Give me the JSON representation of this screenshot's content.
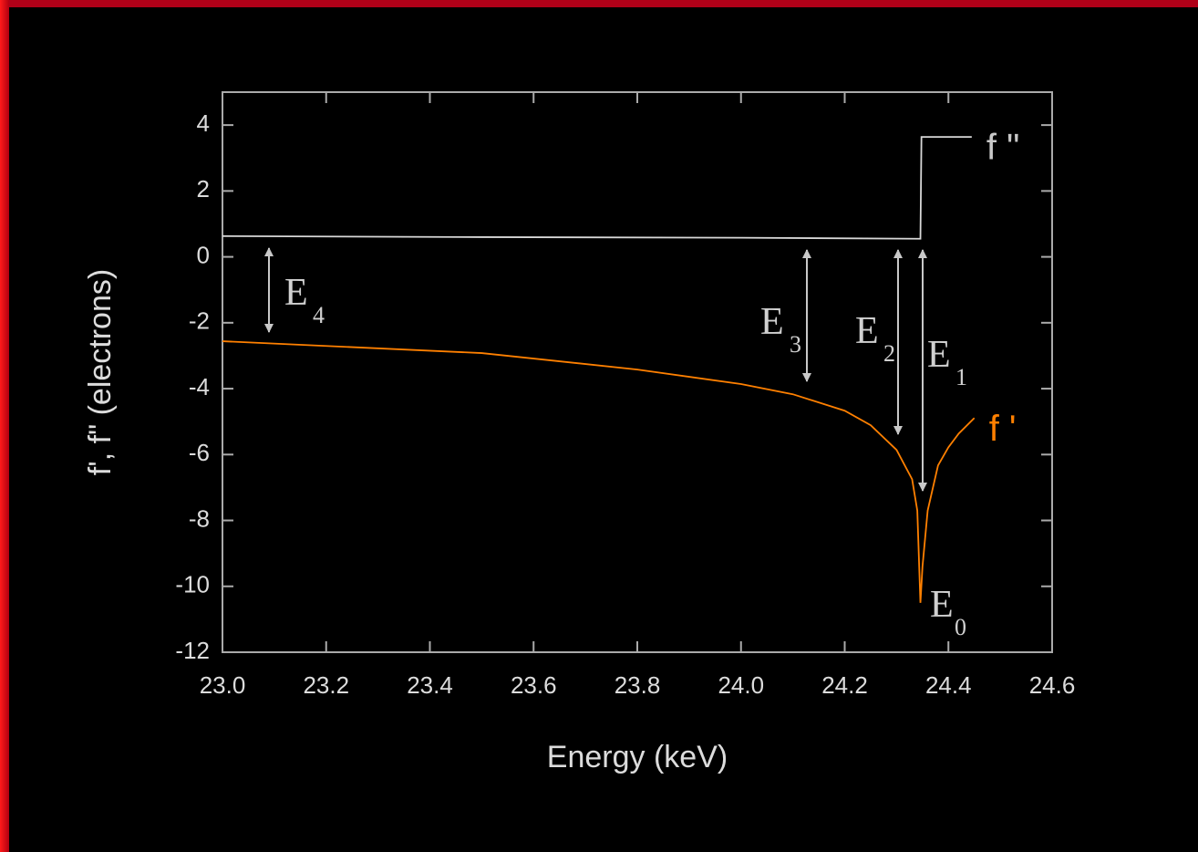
{
  "chart_data": {
    "type": "line",
    "xlabel": "Energy (keV)",
    "ylabel": "f', f\" (electrons)",
    "xlim": [
      23.0,
      24.6
    ],
    "xticks": [
      {
        "value": 23.0,
        "label": "23.0"
      },
      {
        "value": 23.2,
        "label": "23.2"
      },
      {
        "value": 23.4,
        "label": "23.4"
      },
      {
        "value": 23.6,
        "label": "23.6"
      },
      {
        "value": 23.8,
        "label": "23.8"
      },
      {
        "value": 24.0,
        "label": "24.0"
      },
      {
        "value": 24.2,
        "label": "24.2"
      },
      {
        "value": 24.4,
        "label": "24.4"
      },
      {
        "value": 24.6,
        "label": "24.6"
      }
    ],
    "ylim": [
      -12,
      5
    ],
    "yticks": [
      4,
      2,
      0,
      -2,
      -4,
      -6,
      -8,
      -10,
      -12
    ],
    "series": [
      {
        "name": "f \"",
        "color": "#d8d8d8",
        "label_color": "#c8c8c8",
        "x": [
          23.0,
          23.5,
          24.0,
          24.346,
          24.348,
          24.445
        ],
        "values": [
          0.63,
          0.6,
          0.58,
          0.55,
          3.64,
          3.64
        ]
      },
      {
        "name": "f '",
        "color": "#ff8000",
        "label_color": "#ff8000",
        "x": [
          23.0,
          23.5,
          23.8,
          24.0,
          24.1,
          24.2,
          24.25,
          24.3,
          24.33,
          24.34,
          24.346,
          24.35,
          24.36,
          24.38,
          24.4,
          24.42,
          24.45
        ],
        "values": [
          -2.56,
          -2.92,
          -3.42,
          -3.86,
          -4.17,
          -4.67,
          -5.11,
          -5.86,
          -6.75,
          -7.7,
          -10.5,
          -9.4,
          -7.7,
          -6.33,
          -5.78,
          -5.36,
          -4.89
        ]
      }
    ],
    "annotations": [
      {
        "text": "E",
        "sub": "4"
      },
      {
        "text": "E",
        "sub": "3"
      },
      {
        "text": "E",
        "sub": "2"
      },
      {
        "text": "E",
        "sub": "1"
      },
      {
        "text": "E",
        "sub": "0"
      }
    ]
  }
}
